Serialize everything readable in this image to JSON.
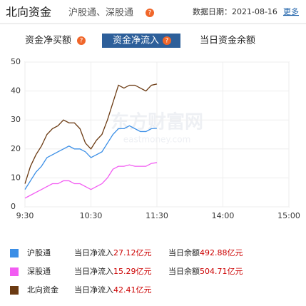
{
  "header": {
    "title": "北向资金",
    "subtitle": "沪股通、深股通",
    "help": "?",
    "date": "数据日期：2021-08-16",
    "more": "更多"
  },
  "tabs": [
    {
      "label": "资金净买额",
      "help": "?"
    },
    {
      "label": "资金净流入",
      "help": "?",
      "active": true
    },
    {
      "label": "当日资金余额"
    }
  ],
  "chart_data": {
    "type": "line",
    "watermark": "东方财富网",
    "watermark_sub": "eastmoney.com",
    "x": [
      0,
      5,
      10,
      15,
      20,
      25,
      30,
      35,
      40,
      45,
      50,
      55,
      60,
      65,
      70,
      75,
      80,
      85,
      90,
      95,
      100,
      105,
      110,
      115,
      120
    ],
    "xlim": [
      0,
      240
    ],
    "xticks": [
      {
        "value": 0,
        "label": "9:30"
      },
      {
        "value": 60,
        "label": "10:30"
      },
      {
        "value": 120,
        "label": "11:30"
      },
      {
        "value": 180,
        "label": "14:00"
      },
      {
        "value": 240,
        "label": "15:00"
      }
    ],
    "ylim": [
      0,
      50
    ],
    "yticks": [
      0,
      10,
      20,
      30,
      40,
      50
    ],
    "grid": true,
    "series": [
      {
        "name": "沪股通",
        "color": "#3a8ee6",
        "values": [
          6,
          9,
          12,
          14,
          17,
          18,
          19,
          20,
          21,
          20,
          20,
          19,
          17,
          18,
          19,
          22,
          25,
          27,
          27,
          28,
          27,
          26,
          26,
          27,
          27.12
        ]
      },
      {
        "name": "深股通",
        "color": "#f25cf2",
        "values": [
          3,
          4,
          5,
          6,
          7,
          8,
          8,
          9,
          9,
          8,
          8,
          7,
          6,
          7,
          8,
          10,
          13,
          14,
          14,
          14.5,
          14,
          14,
          14,
          15,
          15.29
        ]
      },
      {
        "name": "北向资金",
        "color": "#6b3a12",
        "values": [
          8,
          14,
          18,
          21,
          25,
          27,
          28,
          30,
          29,
          29,
          27,
          22,
          20,
          23,
          25,
          30,
          36,
          42,
          41,
          42,
          42,
          41,
          40,
          42,
          42.41
        ]
      }
    ]
  },
  "legend_table": {
    "rows": [
      {
        "inflow_label": "当日净流入",
        "inflow": "27.12亿元",
        "balance_label": "当日余额",
        "balance": "492.88亿元"
      },
      {
        "inflow_label": "当日净流入",
        "inflow": "15.29亿元",
        "balance_label": "当日余额",
        "balance": "504.71亿元"
      },
      {
        "inflow_label": "当日净流入",
        "inflow": "42.41亿元"
      }
    ]
  }
}
